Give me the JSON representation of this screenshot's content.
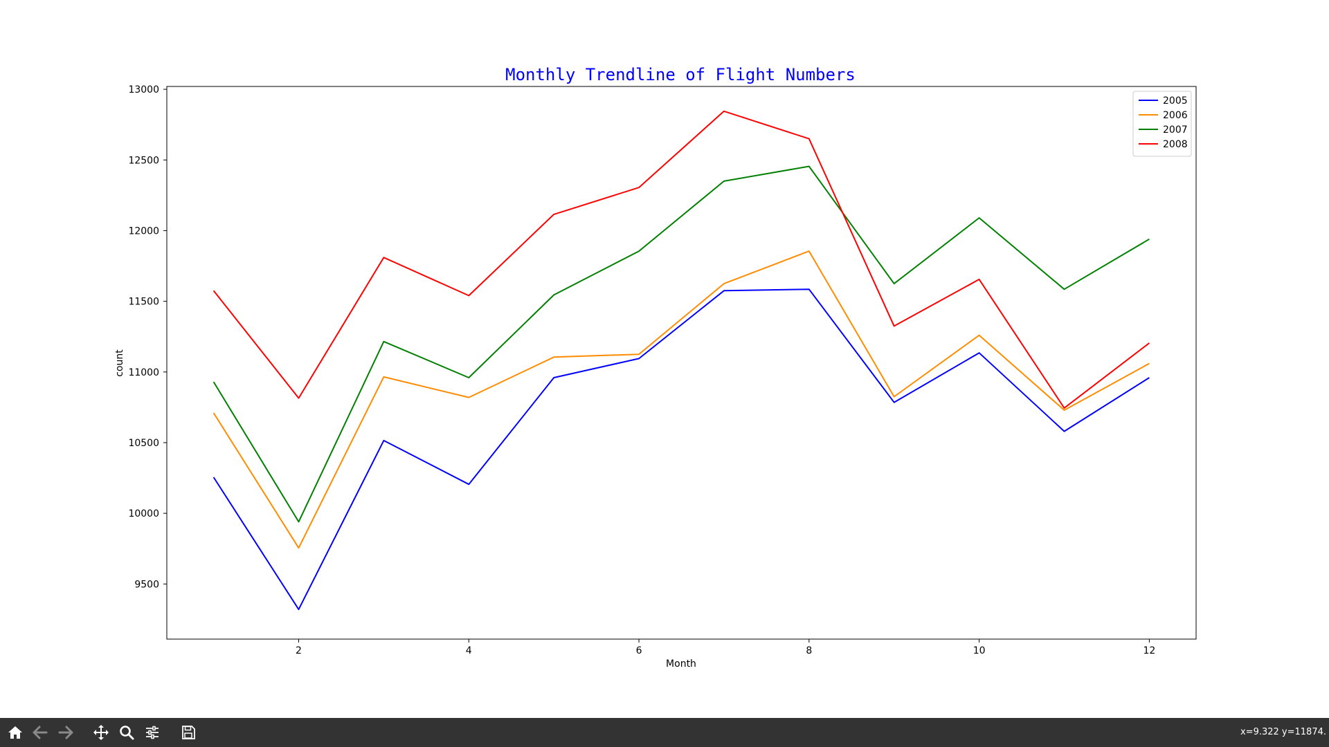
{
  "chart_data": {
    "type": "line",
    "title": "Monthly Trendline of Flight Numbers",
    "title_color": "#0000ff",
    "xlabel": "Month",
    "ylabel": "count",
    "xlim": [
      0.45,
      12.55
    ],
    "ylim": [
      9110,
      13020
    ],
    "xticks": [
      2,
      4,
      6,
      8,
      10,
      12
    ],
    "yticks": [
      9500,
      10000,
      10500,
      11000,
      11500,
      12000,
      12500,
      13000
    ],
    "grid": false,
    "legend_position": "top-right",
    "x": [
      1,
      2,
      3,
      4,
      5,
      6,
      7,
      8,
      9,
      10,
      11,
      12
    ],
    "series": [
      {
        "name": "2005",
        "color": "#0000ff",
        "values": [
          10255,
          9320,
          10515,
          10205,
          10960,
          11095,
          11575,
          11585,
          10785,
          11135,
          10580,
          10960
        ]
      },
      {
        "name": "2006",
        "color": "#ff8c00",
        "values": [
          10710,
          9755,
          10965,
          10820,
          11105,
          11125,
          11625,
          11855,
          10825,
          11260,
          10730,
          11060
        ]
      },
      {
        "name": "2007",
        "color": "#008000",
        "values": [
          10930,
          9940,
          11215,
          10960,
          11545,
          11855,
          12350,
          12455,
          11625,
          12090,
          11585,
          11940
        ]
      },
      {
        "name": "2008",
        "color": "#ff0000",
        "values": [
          11575,
          10815,
          11810,
          11540,
          12115,
          12305,
          12845,
          12650,
          11325,
          11655,
          10745,
          11205
        ]
      }
    ]
  },
  "toolbar": {
    "buttons": [
      {
        "icon": "home-icon"
      },
      {
        "icon": "back-arrow-icon"
      },
      {
        "icon": "forward-arrow-icon"
      },
      {
        "icon": "pan-move-icon"
      },
      {
        "icon": "zoom-magnifier-icon"
      },
      {
        "icon": "configure-subplots-icon"
      },
      {
        "icon": "save-floppy-icon"
      }
    ],
    "coordinates": "x=9.322 y=11874."
  }
}
